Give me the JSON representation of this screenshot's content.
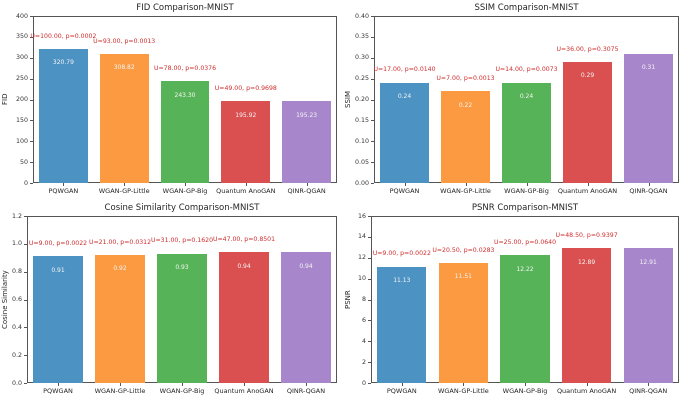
{
  "figure": {
    "background": "#ffffff"
  },
  "colors": {
    "bars": [
      "#4c92c3",
      "#fb9a40",
      "#57b357",
      "#da4f4f",
      "#a886cb"
    ],
    "annotation": "#cf2e2e",
    "bar_label": "#f5f5f5",
    "axis": "#555555",
    "text": "#262626"
  },
  "chart_data": [
    {
      "type": "bar",
      "title": "FID Comparison-MNIST",
      "ylabel": "FID",
      "xlabel": "",
      "ylim": [
        0,
        400
      ],
      "grid": false,
      "yticks": [
        "0",
        "50",
        "100",
        "150",
        "200",
        "250",
        "300",
        "350",
        "400"
      ],
      "categories": [
        "PQWGAN",
        "WGAN-GP-Little",
        "WGAN-GP-Big",
        "Quantum AnoGAN",
        "QINR-QGAN"
      ],
      "values": [
        320.79,
        308.82,
        243.3,
        195.92,
        195.23
      ],
      "bar_labels": [
        "320.79",
        "308.82",
        "243.30",
        "195.92",
        "195.23"
      ],
      "annotations": [
        "U=100.00, p=0.0002",
        "U=93.00, p=0.0013",
        "U=78.00, p=0.0376",
        "U=49.00, p=0.9698",
        null
      ]
    },
    {
      "type": "bar",
      "title": "SSIM Comparison-MNIST",
      "ylabel": "SSIM",
      "xlabel": "",
      "ylim": [
        0,
        0.4
      ],
      "grid": false,
      "yticks": [
        "0.00",
        "0.05",
        "0.10",
        "0.15",
        "0.20",
        "0.25",
        "0.30",
        "0.35",
        "0.40"
      ],
      "categories": [
        "PQWGAN",
        "WGAN-GP-Little",
        "WGAN-GP-Big",
        "Quantum AnoGAN",
        "QINR-QGAN"
      ],
      "values": [
        0.24,
        0.22,
        0.24,
        0.29,
        0.31
      ],
      "bar_labels": [
        "0.24",
        "0.22",
        "0.24",
        "0.29",
        "0.31"
      ],
      "annotations": [
        "U=17.00, p=0.0140",
        "U=7.00, p=0.0013",
        "U=14.00, p=0.0073",
        "U=36.00, p=0.3075",
        null
      ]
    },
    {
      "type": "bar",
      "title": "Cosine Similarity Comparison-MNIST",
      "ylabel": "Cosine Similarity",
      "xlabel": "",
      "ylim": [
        0,
        1.2
      ],
      "grid": false,
      "yticks": [
        "0.0",
        "0.2",
        "0.4",
        "0.6",
        "0.8",
        "1.0",
        "1.2"
      ],
      "categories": [
        "PQWGAN",
        "WGAN-GP-Little",
        "WGAN-GP-Big",
        "Quantum AnoGAN",
        "QINR-QGAN"
      ],
      "values": [
        0.91,
        0.92,
        0.93,
        0.94,
        0.94
      ],
      "bar_labels": [
        "0.91",
        "0.92",
        "0.93",
        "0.94",
        "0.94"
      ],
      "annotations": [
        "U=9.00, p=0.0022",
        "U=21.00, p=0.0312",
        "U=31.00, p=0.1620",
        "U=47.00, p=0.8501",
        null
      ]
    },
    {
      "type": "bar",
      "title": "PSNR Comparison-MNIST",
      "ylabel": "PSNR",
      "xlabel": "",
      "ylim": [
        0,
        16
      ],
      "grid": false,
      "yticks": [
        "0",
        "2",
        "4",
        "6",
        "8",
        "10",
        "12",
        "14",
        "16"
      ],
      "categories": [
        "PQWGAN",
        "WGAN-GP-Little",
        "WGAN-GP-Big",
        "Quantum AnoGAN",
        "QINR-QGAN"
      ],
      "values": [
        11.13,
        11.51,
        12.22,
        12.89,
        12.91
      ],
      "bar_labels": [
        "11.13",
        "11.51",
        "12.22",
        "12.89",
        "12.91"
      ],
      "annotations": [
        "U=9.00, p=0.0022",
        "U=20.50, p=0.0283",
        "U=25.00, p=0.0640",
        "U=48.50, p=0.9397",
        null
      ]
    }
  ]
}
